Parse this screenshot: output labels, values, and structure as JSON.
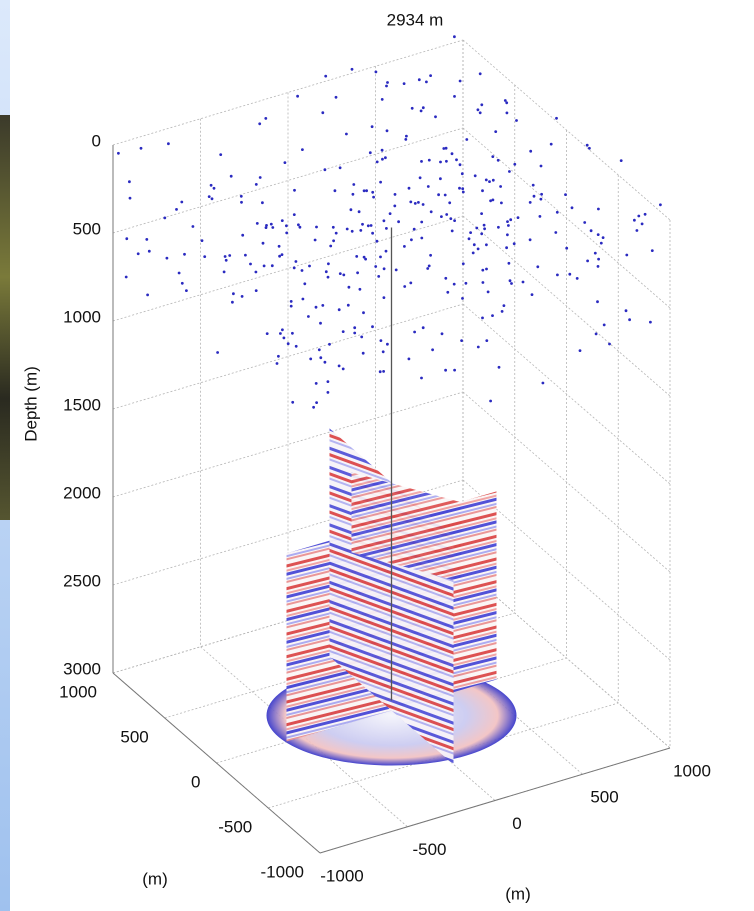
{
  "title": "2934 m",
  "z_axis": {
    "label": "Depth (m)",
    "ticks": [
      0,
      500,
      1000,
      1500,
      2000,
      2500,
      3000
    ]
  },
  "y_axis": {
    "label": "(m)",
    "ticks": [
      1000,
      500,
      0,
      -500,
      -1000
    ]
  },
  "x_axis": {
    "label": "(m)",
    "ticks": [
      -1000,
      -500,
      0,
      500,
      1000
    ]
  }
}
